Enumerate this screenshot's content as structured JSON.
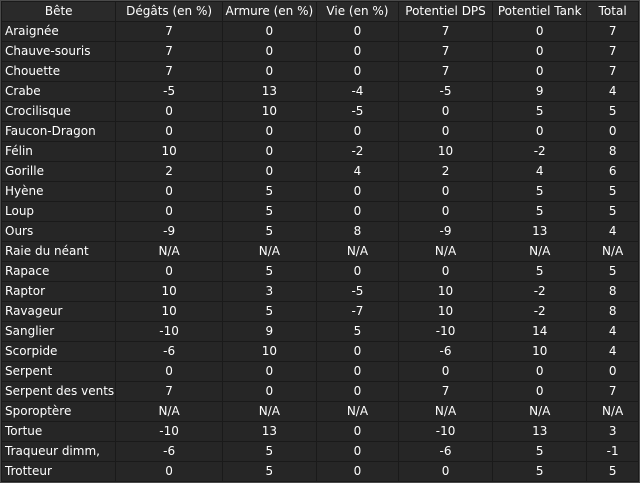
{
  "table": {
    "headers": [
      "Bête",
      "Dégâts (en %)",
      "Armure (en %)",
      "Vie (en %)",
      "Potentiel DPS",
      "Potentiel Tank",
      "Total"
    ],
    "rows": [
      [
        "Araignée",
        "7",
        "0",
        "0",
        "7",
        "0",
        "7"
      ],
      [
        "Chauve-souris",
        "7",
        "0",
        "0",
        "7",
        "0",
        "7"
      ],
      [
        "Chouette",
        "7",
        "0",
        "0",
        "7",
        "0",
        "7"
      ],
      [
        "Crabe",
        "-5",
        "13",
        "-4",
        "-5",
        "9",
        "4"
      ],
      [
        "Crocilisque",
        "0",
        "10",
        "-5",
        "0",
        "5",
        "5"
      ],
      [
        "Faucon-Dragon",
        "0",
        "0",
        "0",
        "0",
        "0",
        "0"
      ],
      [
        "Félin",
        "10",
        "0",
        "-2",
        "10",
        "-2",
        "8"
      ],
      [
        "Gorille",
        "2",
        "0",
        "4",
        "2",
        "4",
        "6"
      ],
      [
        "Hyène",
        "0",
        "5",
        "0",
        "0",
        "5",
        "5"
      ],
      [
        "Loup",
        "0",
        "5",
        "0",
        "0",
        "5",
        "5"
      ],
      [
        "Ours",
        "-9",
        "5",
        "8",
        "-9",
        "13",
        "4"
      ],
      [
        "Raie du néant",
        "N/A",
        "N/A",
        "N/A",
        "N/A",
        "N/A",
        "N/A"
      ],
      [
        "Rapace",
        "0",
        "5",
        "0",
        "0",
        "5",
        "5"
      ],
      [
        "Raptor",
        "10",
        "3",
        "-5",
        "10",
        "-2",
        "8"
      ],
      [
        "Ravageur",
        "10",
        "5",
        "-7",
        "10",
        "-2",
        "8"
      ],
      [
        "Sanglier",
        "-10",
        "9",
        "5",
        "-10",
        "14",
        "4"
      ],
      [
        "Scorpide",
        "-6",
        "10",
        "0",
        "-6",
        "10",
        "4"
      ],
      [
        "Serpent",
        "0",
        "0",
        "0",
        "0",
        "0",
        "0"
      ],
      [
        "Serpent des vents",
        "7",
        "0",
        "0",
        "7",
        "0",
        "7"
      ],
      [
        "Sporoptère",
        "N/A",
        "N/A",
        "N/A",
        "N/A",
        "N/A",
        "N/A"
      ],
      [
        "Tortue",
        "-10",
        "13",
        "0",
        "-10",
        "13",
        "3"
      ],
      [
        "Traqueur dimm,",
        "-6",
        "5",
        "0",
        "-6",
        "5",
        "-1"
      ],
      [
        "Trotteur",
        "0",
        "5",
        "0",
        "0",
        "5",
        "5"
      ]
    ]
  }
}
